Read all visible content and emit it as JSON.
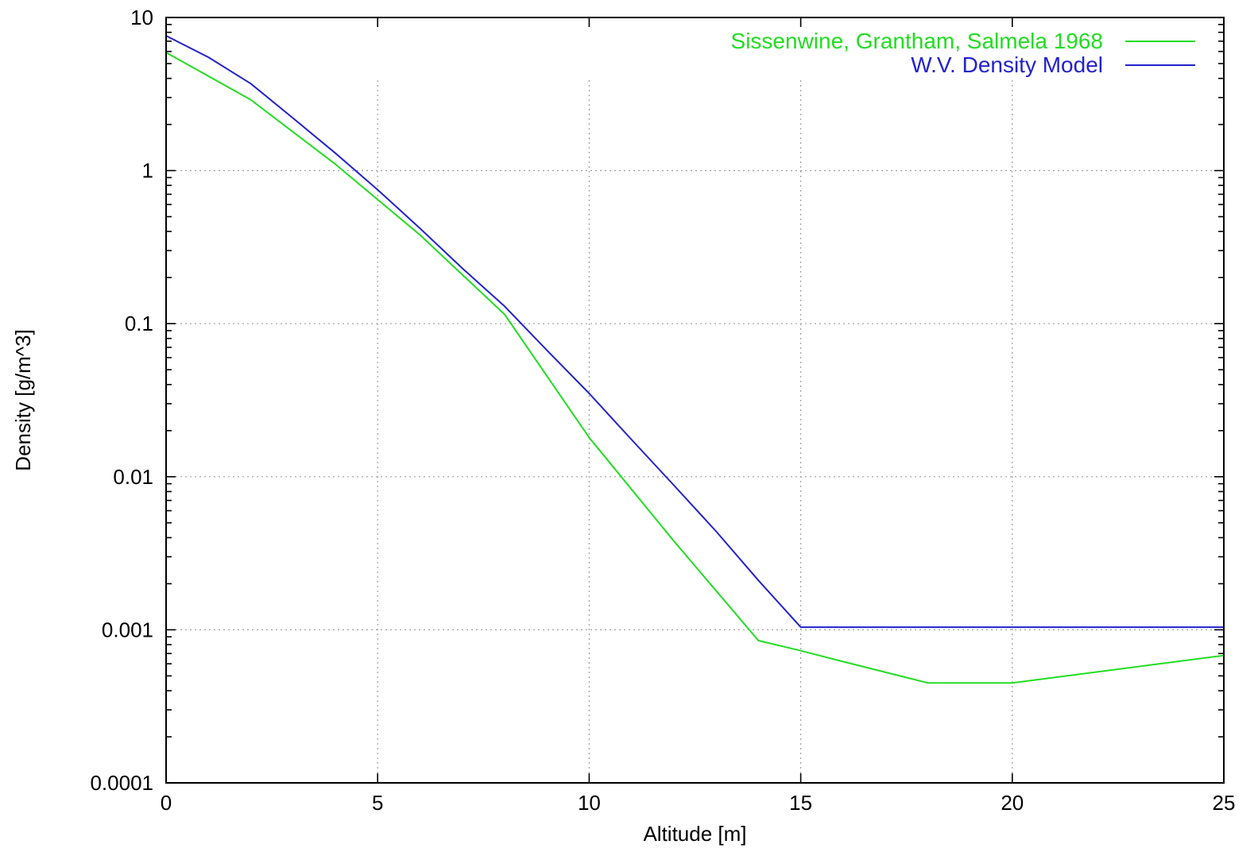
{
  "chart_data": {
    "type": "line",
    "title": "",
    "xlabel": "Altitude [m]",
    "ylabel": "Density [g/m^3]",
    "xlim": [
      0,
      25
    ],
    "ylim": [
      0.0001,
      10
    ],
    "y_scale": "log",
    "grid": true,
    "legend_position": "top-right",
    "x_ticks": [
      {
        "value": 0,
        "label": "0"
      },
      {
        "value": 5,
        "label": "5"
      },
      {
        "value": 10,
        "label": "10"
      },
      {
        "value": 15,
        "label": "15"
      },
      {
        "value": 20,
        "label": "20"
      },
      {
        "value": 25,
        "label": "25"
      }
    ],
    "y_ticks": [
      {
        "value": 10,
        "label": "10"
      },
      {
        "value": 1,
        "label": "1"
      },
      {
        "value": 0.1,
        "label": "0.1"
      },
      {
        "value": 0.01,
        "label": "0.01"
      },
      {
        "value": 0.001,
        "label": "0.001"
      },
      {
        "value": 0.0001,
        "label": "0.0001"
      }
    ],
    "series": [
      {
        "name": "Sissenwine, Grantham, Salmela 1968",
        "color": "#22dd22",
        "x": [
          0,
          2,
          4,
          6,
          8,
          10,
          12,
          14,
          15,
          16,
          18,
          20,
          25
        ],
        "y": [
          5.9,
          2.9,
          1.1,
          0.38,
          0.115,
          0.018,
          0.0038,
          0.00085,
          0.00073,
          0.00062,
          0.00045,
          0.00045,
          0.00068
        ]
      },
      {
        "name": "W.V. Density Model",
        "color": "#2222cc",
        "x": [
          0,
          1,
          2,
          3,
          4,
          5,
          6,
          7,
          8,
          9,
          10,
          11,
          12,
          13,
          14,
          15,
          25
        ],
        "y": [
          7.6,
          5.5,
          3.7,
          2.2,
          1.3,
          0.75,
          0.42,
          0.23,
          0.13,
          0.067,
          0.035,
          0.0175,
          0.0088,
          0.0044,
          0.0021,
          0.00104,
          0.00104
        ]
      }
    ]
  }
}
